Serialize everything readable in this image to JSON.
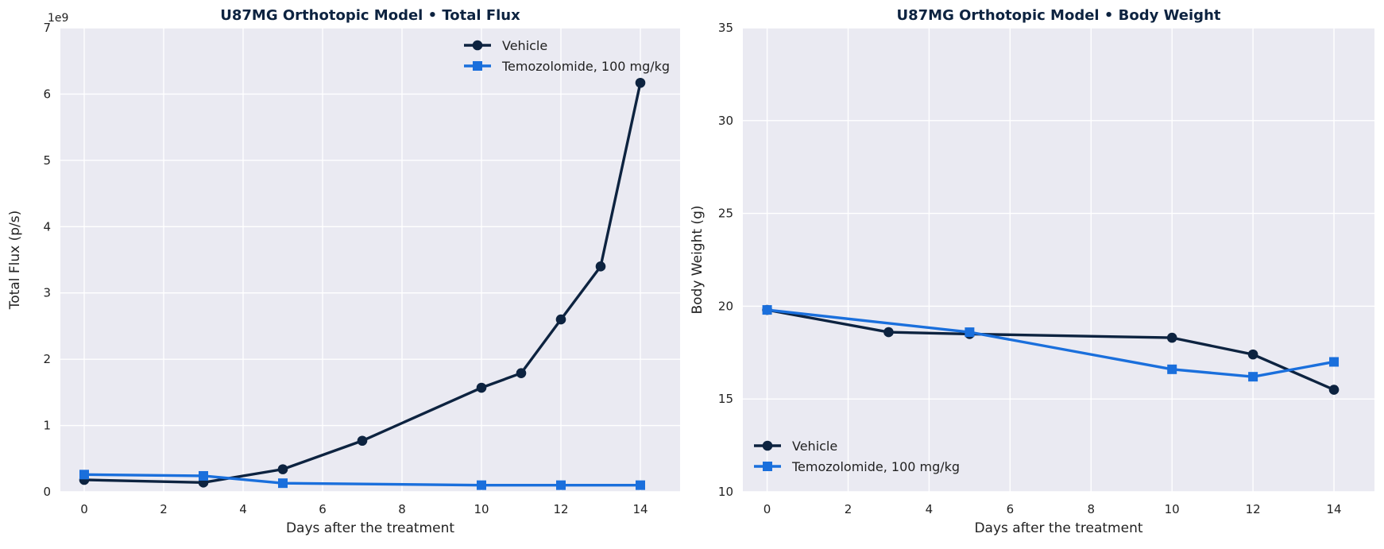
{
  "figure": {
    "colors": {
      "plot_background": "#eaeaf2",
      "grid": "#ffffff",
      "vehicle": "#0d2340",
      "temozolomide": "#1a6fdc",
      "title": "#0d2340"
    }
  },
  "chart_data": [
    {
      "type": "line",
      "title": "U87MG Orthotopic Model  •  Total Flux",
      "xlabel": "Days after the treatment",
      "ylabel": "Total Flux (p/s)",
      "y_offset_label": "1e9",
      "xlim": [
        -0.6,
        15.0
      ],
      "ylim": [
        0,
        7
      ],
      "xticks": [
        0,
        2,
        4,
        6,
        8,
        10,
        12,
        14
      ],
      "xtick_labels": [
        "0",
        "2",
        "4",
        "6",
        "8",
        "10",
        "12",
        "14"
      ],
      "yticks": [
        0,
        1,
        2,
        3,
        4,
        5,
        6,
        7
      ],
      "ytick_labels": [
        "0",
        "1",
        "2",
        "3",
        "4",
        "5",
        "6",
        "7"
      ],
      "y_scale_factor": 1000000000,
      "grid": true,
      "legend_position": "upper right",
      "series": [
        {
          "name": "Vehicle",
          "marker": "circle",
          "color": "#0d2340",
          "x": [
            0,
            3,
            5,
            7,
            10,
            11,
            12,
            13,
            14
          ],
          "y": [
            180000000,
            140000000,
            340000000,
            770000000,
            1570000000,
            1790000000,
            2600000000,
            3400000000,
            6170000000
          ]
        },
        {
          "name": "Temozolomide, 100 mg/kg",
          "marker": "square",
          "color": "#1a6fdc",
          "x": [
            0,
            3,
            5,
            10,
            12,
            14
          ],
          "y": [
            260000000,
            240000000,
            130000000,
            100000000,
            100000000,
            100000000
          ]
        }
      ]
    },
    {
      "type": "line",
      "title": "U87MG Orthotopic Model  •  Body Weight",
      "xlabel": "Days after the treatment",
      "ylabel": "Body Weight (g)",
      "y_offset_label": "",
      "xlim": [
        -0.6,
        15.0
      ],
      "ylim": [
        10,
        35
      ],
      "xticks": [
        0,
        2,
        4,
        6,
        8,
        10,
        12,
        14
      ],
      "xtick_labels": [
        "0",
        "2",
        "4",
        "6",
        "8",
        "10",
        "12",
        "14"
      ],
      "yticks": [
        10,
        15,
        20,
        25,
        30,
        35
      ],
      "ytick_labels": [
        "10",
        "15",
        "20",
        "25",
        "30",
        "35"
      ],
      "y_scale_factor": 1,
      "grid": true,
      "legend_position": "lower left",
      "series": [
        {
          "name": "Vehicle",
          "marker": "circle",
          "color": "#0d2340",
          "x": [
            0,
            3,
            5,
            10,
            12,
            14
          ],
          "y": [
            19.8,
            18.6,
            18.5,
            18.3,
            17.4,
            15.5
          ]
        },
        {
          "name": "Temozolomide, 100 mg/kg",
          "marker": "square",
          "color": "#1a6fdc",
          "x": [
            0,
            5,
            10,
            12,
            14
          ],
          "y": [
            19.8,
            18.6,
            16.6,
            16.2,
            17.0
          ]
        }
      ]
    }
  ]
}
